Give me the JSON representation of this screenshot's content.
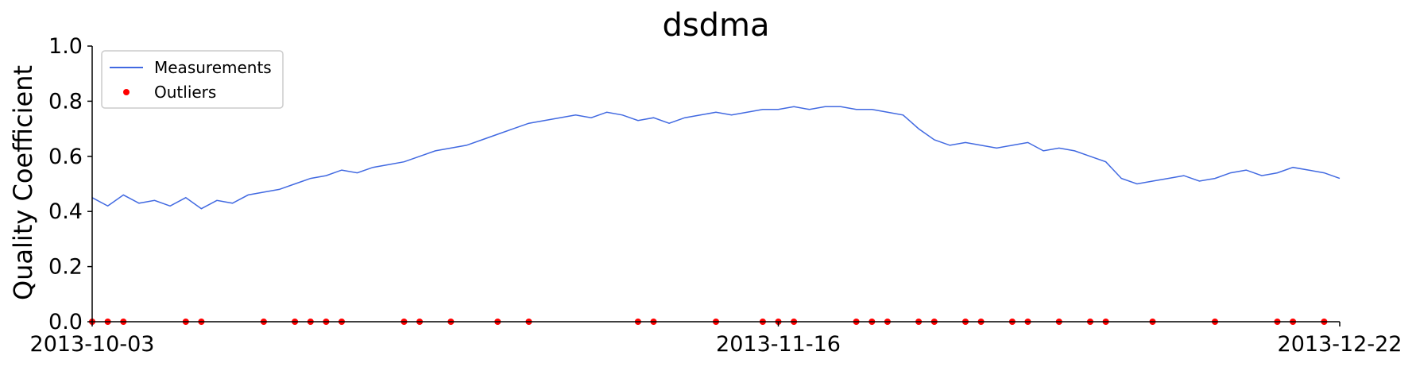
{
  "chart_data": {
    "type": "line",
    "title": "dsdma",
    "xlabel": "",
    "ylabel": "Quality Coefficient",
    "ylim": [
      0.0,
      1.0
    ],
    "y_ticks": [
      "0.0",
      "0.2",
      "0.4",
      "0.6",
      "0.8",
      "1.0"
    ],
    "x_ticks": [
      "2013-10-03",
      "2013-11-16",
      "2013-12-22"
    ],
    "xlim": [
      "2013-10-03",
      "2013-12-22"
    ],
    "grid": false,
    "legend_position": "top-left",
    "colors": {
      "measurements": "#4169E1",
      "outliers": "#FF0000"
    },
    "series": [
      {
        "name": "Measurements",
        "marker": "line",
        "x": [
          "2013-10-03",
          "2013-10-04",
          "2013-10-05",
          "2013-10-06",
          "2013-10-07",
          "2013-10-08",
          "2013-10-09",
          "2013-10-10",
          "2013-10-11",
          "2013-10-12",
          "2013-10-13",
          "2013-10-14",
          "2013-10-15",
          "2013-10-16",
          "2013-10-17",
          "2013-10-18",
          "2013-10-19",
          "2013-10-20",
          "2013-10-21",
          "2013-10-22",
          "2013-10-23",
          "2013-10-24",
          "2013-10-25",
          "2013-10-26",
          "2013-10-27",
          "2013-10-28",
          "2013-10-29",
          "2013-10-30",
          "2013-10-31",
          "2013-11-01",
          "2013-11-02",
          "2013-11-03",
          "2013-11-04",
          "2013-11-05",
          "2013-11-06",
          "2013-11-07",
          "2013-11-08",
          "2013-11-09",
          "2013-11-10",
          "2013-11-11",
          "2013-11-12",
          "2013-11-13",
          "2013-11-14",
          "2013-11-15",
          "2013-11-16",
          "2013-11-17",
          "2013-11-18",
          "2013-11-19",
          "2013-11-20",
          "2013-11-21",
          "2013-11-22",
          "2013-11-23",
          "2013-11-24",
          "2013-11-25",
          "2013-11-26",
          "2013-11-27",
          "2013-11-28",
          "2013-11-29",
          "2013-11-30",
          "2013-12-01",
          "2013-12-02",
          "2013-12-03",
          "2013-12-04",
          "2013-12-05",
          "2013-12-06",
          "2013-12-07",
          "2013-12-08",
          "2013-12-09",
          "2013-12-10",
          "2013-12-11",
          "2013-12-12",
          "2013-12-13",
          "2013-12-14",
          "2013-12-15",
          "2013-12-16",
          "2013-12-17",
          "2013-12-18",
          "2013-12-19",
          "2013-12-20",
          "2013-12-21",
          "2013-12-22"
        ],
        "y": [
          0.45,
          0.42,
          0.46,
          0.43,
          0.44,
          0.42,
          0.45,
          0.41,
          0.44,
          0.43,
          0.46,
          0.47,
          0.48,
          0.5,
          0.52,
          0.53,
          0.55,
          0.54,
          0.56,
          0.57,
          0.58,
          0.6,
          0.62,
          0.63,
          0.64,
          0.66,
          0.68,
          0.7,
          0.72,
          0.73,
          0.74,
          0.75,
          0.74,
          0.76,
          0.75,
          0.73,
          0.74,
          0.72,
          0.74,
          0.75,
          0.76,
          0.75,
          0.76,
          0.77,
          0.77,
          0.78,
          0.77,
          0.78,
          0.78,
          0.77,
          0.77,
          0.76,
          0.75,
          0.7,
          0.66,
          0.64,
          0.65,
          0.64,
          0.63,
          0.64,
          0.65,
          0.62,
          0.63,
          0.62,
          0.6,
          0.58,
          0.52,
          0.5,
          0.51,
          0.52,
          0.53,
          0.51,
          0.52,
          0.54,
          0.55,
          0.53,
          0.54,
          0.56,
          0.55,
          0.54,
          0.52
        ]
      },
      {
        "name": "Outliers",
        "marker": "point",
        "x": [
          "2013-10-03",
          "2013-10-04",
          "2013-10-05",
          "2013-10-09",
          "2013-10-10",
          "2013-10-14",
          "2013-10-16",
          "2013-10-17",
          "2013-10-18",
          "2013-10-19",
          "2013-10-23",
          "2013-10-24",
          "2013-10-26",
          "2013-10-29",
          "2013-10-31",
          "2013-11-07",
          "2013-11-08",
          "2013-11-12",
          "2013-11-15",
          "2013-11-16",
          "2013-11-17",
          "2013-11-21",
          "2013-11-22",
          "2013-11-23",
          "2013-11-25",
          "2013-11-26",
          "2013-11-28",
          "2013-11-29",
          "2013-12-01",
          "2013-12-02",
          "2013-12-04",
          "2013-12-06",
          "2013-12-07",
          "2013-12-10",
          "2013-12-14",
          "2013-12-18",
          "2013-12-19",
          "2013-12-21"
        ],
        "y": [
          0,
          0,
          0,
          0,
          0,
          0,
          0,
          0,
          0,
          0,
          0,
          0,
          0,
          0,
          0,
          0,
          0,
          0,
          0,
          0,
          0,
          0,
          0,
          0,
          0,
          0,
          0,
          0,
          0,
          0,
          0,
          0,
          0,
          0,
          0,
          0,
          0,
          0
        ]
      }
    ]
  }
}
